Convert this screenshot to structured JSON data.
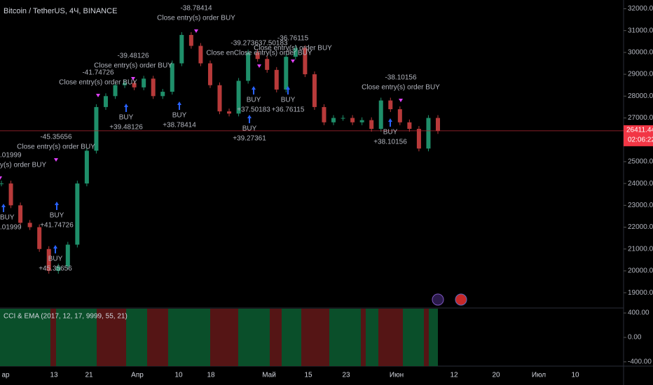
{
  "header": {
    "title": "Bitcoin / TetherUS, 4Ч, BINANCE"
  },
  "chart_data": {
    "type": "candlestick",
    "closes": [
      24000,
      23000,
      22200,
      22000,
      21000,
      20000,
      20200,
      21200,
      24000,
      25500,
      27500,
      28000,
      28500,
      28600,
      28400,
      28800,
      28000,
      28200,
      29500,
      30800,
      30300,
      29500,
      28500,
      27300,
      27200,
      28700,
      30000,
      29700,
      29200,
      28300,
      29800,
      30200,
      29000,
      27500,
      26800,
      27000,
      27000,
      26800,
      26900,
      26500,
      27800,
      27400,
      26800,
      26500,
      25600,
      27000,
      26400
    ],
    "ylim": [
      18300,
      32400
    ],
    "yticks": [
      {
        "value": 32000,
        "label": "32000.00"
      },
      {
        "value": 31000,
        "label": "31000.00"
      },
      {
        "value": 30000,
        "label": "30000.00"
      },
      {
        "value": 29000,
        "label": "29000.00"
      },
      {
        "value": 28000,
        "label": "28000.00"
      },
      {
        "value": 27000,
        "label": "27000.00"
      },
      {
        "value": 26000,
        "label": "26000.00"
      },
      {
        "value": 25000,
        "label": "25000.00"
      },
      {
        "value": 24000,
        "label": "24000.00"
      },
      {
        "value": 23000,
        "label": "23000.00"
      },
      {
        "value": 22000,
        "label": "22000.00"
      },
      {
        "value": 21000,
        "label": "21000.00"
      },
      {
        "value": 20000,
        "label": "20000.00"
      },
      {
        "value": 19000,
        "label": "19000.00"
      }
    ],
    "last_price": {
      "value": 26411.44,
      "label": "26411.44"
    },
    "countdown": "02:06:22",
    "up_color": "#1f8f6a",
    "down_color": "#b83a3a",
    "annotations": [
      [
        "-38.78414",
        "Close entry(s) order BUY"
      ],
      [
        "-39.48126",
        "Close entry(s) order BUY"
      ],
      [
        "-41.74726",
        "Close entry(s) order BUY"
      ],
      [
        "-45.35656",
        "Close entry(s) order BUY"
      ],
      [
        ".01999",
        "y(s) order BUY"
      ],
      [
        "-39.273637.50183",
        "Close enClose entry(s) order BUY"
      ],
      [
        "-36.76115",
        "Close entry(s) order BUY"
      ],
      [
        "-38.10156",
        "Close entry(s) order BUY"
      ],
      [
        "BUY",
        "+39.48126"
      ],
      [
        "BUY",
        "+38.78414"
      ],
      [
        "BUY",
        "+37.50183"
      ],
      [
        "BUY",
        "+36.76115"
      ],
      [
        "BUY",
        "+39.27361"
      ],
      [
        "BUY",
        "+38.10156"
      ],
      [
        "BUY",
        "+41.74726"
      ],
      [
        "BUY",
        "+45.35656"
      ],
      [
        "BUY",
        ".01999"
      ]
    ]
  },
  "indicator": {
    "label": "CCI & EMA (2017, 12, 17, 9999, 55, 21)",
    "ylim": [
      -470,
      470
    ],
    "yticks": [
      {
        "value": 400,
        "label": "400.00"
      },
      {
        "value": 0,
        "label": "0.00"
      },
      {
        "value": -400,
        "label": "-400.00"
      }
    ]
  },
  "x_axis_labels": [
    "ар",
    "13",
    "21",
    "Апр",
    "10",
    "18",
    "Май",
    "15",
    "23",
    "Июн",
    "12",
    "20",
    "Июл",
    "10"
  ]
}
